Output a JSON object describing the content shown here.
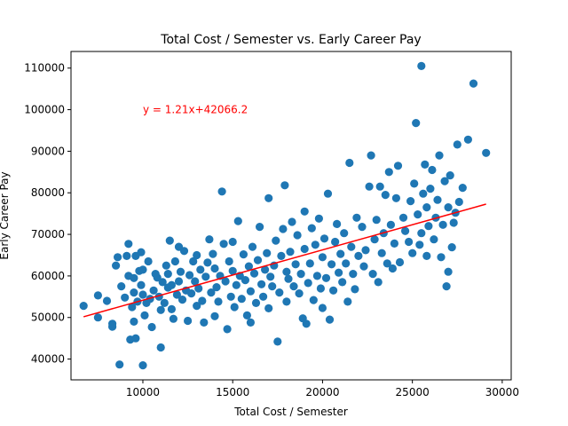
{
  "chart_data": {
    "type": "scatter",
    "title": "Total Cost / Semester vs. Early Career Pay",
    "xlabel": "Total Cost / Semester",
    "ylabel": "Early Career Pay",
    "xlim": [
      6000,
      30500
    ],
    "ylim": [
      35000,
      114000
    ],
    "xticks": [
      10000,
      15000,
      20000,
      25000,
      30000
    ],
    "yticks": [
      40000,
      50000,
      60000,
      70000,
      80000,
      90000,
      100000,
      110000
    ],
    "grid": false,
    "colors": {
      "points": "#1f77b4",
      "regression": "#ff0000"
    },
    "regression": {
      "slope": 1.21,
      "intercept": 42066.2,
      "x_range": [
        6700,
        29100
      ],
      "label": "y = 1.21x+42066.2",
      "label_at": [
        10000,
        100000
      ]
    },
    "points": [
      [
        6700,
        52800
      ],
      [
        7500,
        55300
      ],
      [
        7500,
        50000
      ],
      [
        8000,
        54000
      ],
      [
        8300,
        48500
      ],
      [
        8300,
        47800
      ],
      [
        8500,
        62500
      ],
      [
        8600,
        64500
      ],
      [
        8700,
        38700
      ],
      [
        8800,
        57500
      ],
      [
        9000,
        54800
      ],
      [
        9100,
        64800
      ],
      [
        9200,
        67700
      ],
      [
        9200,
        60000
      ],
      [
        9300,
        44700
      ],
      [
        9400,
        52500
      ],
      [
        9500,
        59500
      ],
      [
        9500,
        56000
      ],
      [
        9500,
        49000
      ],
      [
        9600,
        64800
      ],
      [
        9600,
        45000
      ],
      [
        9700,
        53800
      ],
      [
        9800,
        61200
      ],
      [
        9900,
        57800
      ],
      [
        9900,
        65700
      ],
      [
        10000,
        38500
      ],
      [
        10000,
        55500
      ],
      [
        10000,
        61500
      ],
      [
        10100,
        50500
      ],
      [
        10200,
        53500
      ],
      [
        10300,
        63500
      ],
      [
        10400,
        54500
      ],
      [
        10500,
        47700
      ],
      [
        10600,
        56500
      ],
      [
        10700,
        60500
      ],
      [
        10800,
        59600
      ],
      [
        10900,
        55000
      ],
      [
        11000,
        42800
      ],
      [
        11000,
        51800
      ],
      [
        11100,
        58500
      ],
      [
        11200,
        53500
      ],
      [
        11300,
        62500
      ],
      [
        11400,
        57200
      ],
      [
        11400,
        60500
      ],
      [
        11500,
        68500
      ],
      [
        11600,
        57800
      ],
      [
        11600,
        52000
      ],
      [
        11700,
        49700
      ],
      [
        11800,
        63500
      ],
      [
        11900,
        55500
      ],
      [
        12000,
        67000
      ],
      [
        12000,
        58700
      ],
      [
        12100,
        61000
      ],
      [
        12200,
        54300
      ],
      [
        12300,
        66000
      ],
      [
        12400,
        56500
      ],
      [
        12500,
        49200
      ],
      [
        12600,
        60200
      ],
      [
        12700,
        55800
      ],
      [
        12800,
        63500
      ],
      [
        12900,
        58700
      ],
      [
        13000,
        65000
      ],
      [
        13000,
        52800
      ],
      [
        13100,
        57000
      ],
      [
        13200,
        61500
      ],
      [
        13300,
        54000
      ],
      [
        13400,
        48800
      ],
      [
        13500,
        59800
      ],
      [
        13600,
        63200
      ],
      [
        13700,
        68800
      ],
      [
        13800,
        56000
      ],
      [
        13900,
        65300
      ],
      [
        14000,
        50300
      ],
      [
        14000,
        61800
      ],
      [
        14100,
        57300
      ],
      [
        14200,
        53800
      ],
      [
        14300,
        60000
      ],
      [
        14400,
        80300
      ],
      [
        14500,
        67700
      ],
      [
        14600,
        58700
      ],
      [
        14700,
        47200
      ],
      [
        14800,
        63500
      ],
      [
        14900,
        55000
      ],
      [
        15000,
        61200
      ],
      [
        15000,
        68200
      ],
      [
        15100,
        52500
      ],
      [
        15200,
        57800
      ],
      [
        15300,
        73200
      ],
      [
        15400,
        60000
      ],
      [
        15500,
        54500
      ],
      [
        15600,
        65200
      ],
      [
        15700,
        59000
      ],
      [
        15800,
        50500
      ],
      [
        15900,
        62300
      ],
      [
        16000,
        56300
      ],
      [
        16000,
        48800
      ],
      [
        16100,
        67000
      ],
      [
        16200,
        60600
      ],
      [
        16300,
        53500
      ],
      [
        16400,
        63800
      ],
      [
        16500,
        71800
      ],
      [
        16600,
        58000
      ],
      [
        16700,
        55000
      ],
      [
        16800,
        61500
      ],
      [
        16900,
        65500
      ],
      [
        17000,
        78700
      ],
      [
        17000,
        52200
      ],
      [
        17100,
        59800
      ],
      [
        17200,
        57500
      ],
      [
        17300,
        62500
      ],
      [
        17400,
        68500
      ],
      [
        17500,
        44200
      ],
      [
        17600,
        56000
      ],
      [
        17700,
        64800
      ],
      [
        17800,
        71300
      ],
      [
        17900,
        81800
      ],
      [
        18000,
        61000
      ],
      [
        18000,
        53800
      ],
      [
        18100,
        59300
      ],
      [
        18200,
        65800
      ],
      [
        18300,
        73000
      ],
      [
        18400,
        57500
      ],
      [
        18500,
        62800
      ],
      [
        18600,
        69800
      ],
      [
        18700,
        55800
      ],
      [
        18800,
        60500
      ],
      [
        18900,
        49800
      ],
      [
        19000,
        66500
      ],
      [
        19000,
        75500
      ],
      [
        19100,
        48500
      ],
      [
        19200,
        58300
      ],
      [
        19300,
        63000
      ],
      [
        19400,
        71500
      ],
      [
        19500,
        54200
      ],
      [
        19600,
        67500
      ],
      [
        19700,
        60000
      ],
      [
        19800,
        73800
      ],
      [
        19900,
        57000
      ],
      [
        20000,
        52300
      ],
      [
        20000,
        64500
      ],
      [
        20100,
        69000
      ],
      [
        20200,
        59500
      ],
      [
        20300,
        79800
      ],
      [
        20400,
        49500
      ],
      [
        20500,
        62800
      ],
      [
        20600,
        56500
      ],
      [
        20700,
        68200
      ],
      [
        20800,
        72500
      ],
      [
        20900,
        60800
      ],
      [
        21000,
        65300
      ],
      [
        21100,
        58500
      ],
      [
        21200,
        70300
      ],
      [
        21300,
        63000
      ],
      [
        21400,
        53800
      ],
      [
        21500,
        87200
      ],
      [
        21600,
        67000
      ],
      [
        21700,
        60500
      ],
      [
        21800,
        56800
      ],
      [
        21900,
        74000
      ],
      [
        22000,
        64800
      ],
      [
        22200,
        71800
      ],
      [
        22300,
        62300
      ],
      [
        22400,
        66200
      ],
      [
        22600,
        81500
      ],
      [
        22700,
        89000
      ],
      [
        22800,
        60500
      ],
      [
        22900,
        68800
      ],
      [
        23000,
        73500
      ],
      [
        23100,
        58500
      ],
      [
        23200,
        81500
      ],
      [
        23300,
        65500
      ],
      [
        23400,
        70300
      ],
      [
        23500,
        79500
      ],
      [
        23600,
        63000
      ],
      [
        23700,
        85000
      ],
      [
        23800,
        72300
      ],
      [
        23900,
        61800
      ],
      [
        24000,
        67800
      ],
      [
        24100,
        78700
      ],
      [
        24200,
        86500
      ],
      [
        24300,
        63300
      ],
      [
        24500,
        74000
      ],
      [
        24600,
        70800
      ],
      [
        24800,
        68200
      ],
      [
        24900,
        78000
      ],
      [
        25000,
        65500
      ],
      [
        25100,
        82200
      ],
      [
        25200,
        96800
      ],
      [
        25300,
        74800
      ],
      [
        25400,
        67500
      ],
      [
        25500,
        110500
      ],
      [
        25500,
        70300
      ],
      [
        25600,
        79800
      ],
      [
        25700,
        86800
      ],
      [
        25800,
        76500
      ],
      [
        25800,
        64800
      ],
      [
        25900,
        72000
      ],
      [
        26000,
        81000
      ],
      [
        26100,
        85500
      ],
      [
        26200,
        68800
      ],
      [
        26300,
        74000
      ],
      [
        26400,
        78300
      ],
      [
        26500,
        89000
      ],
      [
        26600,
        64500
      ],
      [
        26700,
        72300
      ],
      [
        26800,
        82800
      ],
      [
        26900,
        57500
      ],
      [
        27000,
        61000
      ],
      [
        27000,
        76500
      ],
      [
        27100,
        84200
      ],
      [
        27200,
        66900
      ],
      [
        27300,
        72800
      ],
      [
        27400,
        75200
      ],
      [
        27500,
        91600
      ],
      [
        27600,
        77800
      ],
      [
        27800,
        81200
      ],
      [
        28100,
        92800
      ],
      [
        28400,
        106300
      ],
      [
        29100,
        89600
      ]
    ]
  }
}
